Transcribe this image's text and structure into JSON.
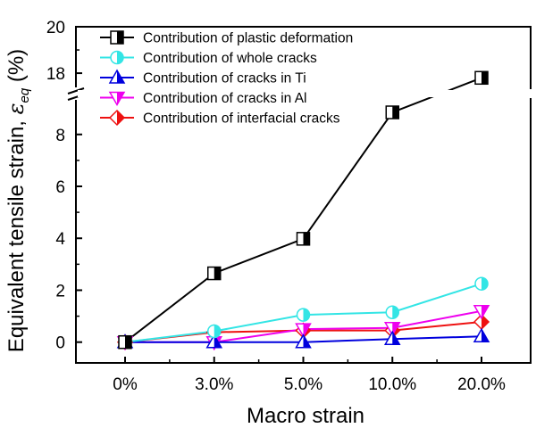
{
  "chart_data": {
    "type": "line",
    "xlabel": "Macro strain",
    "ylabel_main": "Equivalent tensile strain, ",
    "ylabel_symbol": "ε",
    "ylabel_subscript": "eq",
    "ylabel_unit": " (%)",
    "categories": [
      "0%",
      "3.0%",
      "5.0%",
      "10.0%",
      "20.0%"
    ],
    "y_axis": {
      "broken": true,
      "lower_range": [
        -0.8,
        9.4
      ],
      "upper_range": [
        17.35,
        20
      ],
      "lower_ticks": [
        "0",
        "2",
        "4",
        "6",
        "8"
      ],
      "upper_ticks": [
        "18",
        "20"
      ]
    },
    "legend_position": "top-right",
    "series": [
      {
        "name": "Contribution of plastic deformation",
        "values": [
          0,
          2.65,
          3.98,
          8.85,
          17.8
        ],
        "color": "#000000",
        "marker": "square-half"
      },
      {
        "name": "Contribution of whole cracks",
        "values": [
          0,
          0.42,
          1.05,
          1.15,
          2.25
        ],
        "color": "#33e5e5",
        "marker": "circle-half"
      },
      {
        "name": "Contribution of cracks in Ti",
        "values": [
          0,
          0,
          0,
          0.12,
          0.22
        ],
        "color": "#0000dd",
        "marker": "triangle-up-half"
      },
      {
        "name": "Contribution of cracks in Al",
        "values": [
          0,
          0,
          0.5,
          0.55,
          1.2
        ],
        "color": "#ee00ee",
        "marker": "triangle-down-half"
      },
      {
        "name": "Contribution of interfacial cracks",
        "values": [
          0,
          0.38,
          0.45,
          0.45,
          0.78
        ],
        "color": "#ee1111",
        "marker": "diamond-half"
      }
    ]
  }
}
